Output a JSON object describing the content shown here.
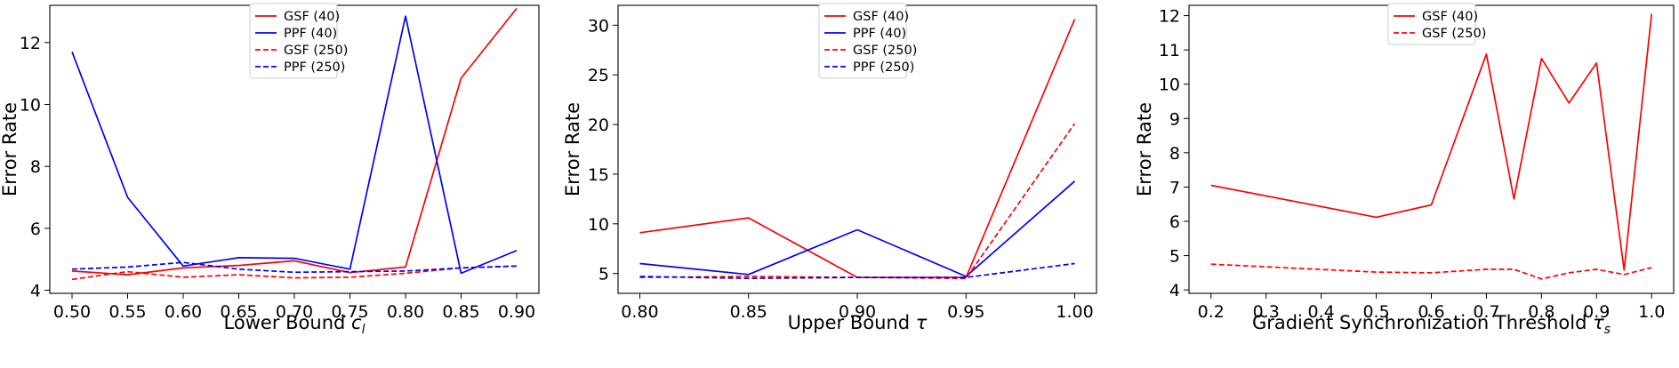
{
  "chart_data": [
    {
      "type": "line",
      "xlabel": "Lower Bound ",
      "xlabel_symbol": "c",
      "xlabel_sub": "l",
      "ylabel": "Error Rate",
      "xlim": [
        0.48,
        0.92
      ],
      "ylim": [
        3.9,
        13.2
      ],
      "x_ticks": [
        0.5,
        0.55,
        0.6,
        0.65,
        0.7,
        0.75,
        0.8,
        0.85,
        0.9
      ],
      "x_tick_labels": [
        "0.50",
        "0.55",
        "0.60",
        "0.65",
        "0.70",
        "0.75",
        "0.80",
        "0.85",
        "0.90"
      ],
      "y_ticks": [
        4,
        6,
        8,
        10,
        12
      ],
      "y_tick_labels": [
        "4",
        "6",
        "8",
        "10",
        "12"
      ],
      "grid": false,
      "legend_position": "top-center",
      "x": [
        0.5,
        0.55,
        0.6,
        0.65,
        0.7,
        0.75,
        0.8,
        0.85,
        0.9
      ],
      "series": [
        {
          "name": "GSF (40)",
          "color": "#ff0000",
          "dash": "solid",
          "values": [
            4.62,
            4.5,
            4.72,
            4.8,
            4.95,
            4.57,
            4.75,
            10.85,
            13.1
          ]
        },
        {
          "name": "PPF (40)",
          "color": "#0000ff",
          "dash": "solid",
          "values": [
            11.7,
            7.0,
            4.78,
            5.05,
            5.03,
            4.68,
            12.85,
            4.55,
            5.28
          ]
        },
        {
          "name": "GSF (250)",
          "color": "#ff0000",
          "dash": "dashed",
          "values": [
            4.35,
            4.6,
            4.42,
            4.5,
            4.4,
            4.42,
            4.55,
            4.72,
            4.78
          ]
        },
        {
          "name": "PPF (250)",
          "color": "#0000ff",
          "dash": "dashed",
          "values": [
            4.68,
            4.75,
            4.9,
            4.68,
            4.58,
            4.6,
            4.62,
            4.72,
            4.78
          ]
        }
      ]
    },
    {
      "type": "line",
      "xlabel": "Upper Bound ",
      "xlabel_symbol": "τ",
      "xlabel_sub": "",
      "ylabel": "Error Rate",
      "xlim": [
        0.79,
        1.01
      ],
      "ylim": [
        3.0,
        32.0
      ],
      "x_ticks": [
        0.8,
        0.85,
        0.9,
        0.95,
        1.0
      ],
      "x_tick_labels": [
        "0.80",
        "0.85",
        "0.90",
        "0.95",
        "1.00"
      ],
      "y_ticks": [
        5,
        10,
        15,
        20,
        25,
        30
      ],
      "y_tick_labels": [
        "5",
        "10",
        "15",
        "20",
        "25",
        "30"
      ],
      "grid": false,
      "legend_position": "top-center",
      "x": [
        0.8,
        0.85,
        0.9,
        0.95,
        1.0
      ],
      "series": [
        {
          "name": "GSF (40)",
          "color": "#ff0000",
          "dash": "solid",
          "values": [
            9.1,
            10.6,
            4.6,
            4.6,
            30.6
          ]
        },
        {
          "name": "PPF (40)",
          "color": "#0000ff",
          "dash": "solid",
          "values": [
            6.0,
            4.9,
            9.4,
            4.7,
            14.3
          ]
        },
        {
          "name": "GSF (250)",
          "color": "#ff0000",
          "dash": "dashed",
          "values": [
            4.6,
            4.7,
            4.6,
            4.5,
            20.1
          ]
        },
        {
          "name": "PPF (250)",
          "color": "#0000ff",
          "dash": "dashed",
          "values": [
            4.7,
            4.5,
            4.6,
            4.6,
            6.0
          ]
        }
      ]
    },
    {
      "type": "line",
      "xlabel": "Gradient Synchronization Threshold ",
      "xlabel_symbol": "τ",
      "xlabel_sub": "s",
      "ylabel": "Error Rate",
      "xlim": [
        0.16,
        1.04
      ],
      "ylim": [
        3.9,
        12.3
      ],
      "x_ticks": [
        0.2,
        0.3,
        0.4,
        0.5,
        0.6,
        0.7,
        0.8,
        0.9,
        1.0
      ],
      "x_tick_labels": [
        "0.2",
        "0.3",
        "0.4",
        "0.5",
        "0.6",
        "0.7",
        "0.8",
        "0.9",
        "1.0"
      ],
      "y_ticks": [
        4,
        5,
        6,
        7,
        8,
        9,
        10,
        11,
        12
      ],
      "y_tick_labels": [
        "4",
        "5",
        "6",
        "7",
        "8",
        "9",
        "10",
        "11",
        "12"
      ],
      "grid": false,
      "legend_position": "top-center",
      "x": [
        0.2,
        0.5,
        0.6,
        0.7,
        0.75,
        0.8,
        0.85,
        0.9,
        0.95,
        1.0
      ],
      "series": [
        {
          "name": "GSF (40)",
          "color": "#ff0000",
          "dash": "solid",
          "values": [
            7.05,
            6.12,
            6.48,
            10.88,
            6.65,
            10.75,
            9.45,
            10.62,
            4.58,
            12.05
          ]
        },
        {
          "name": "GSF (250)",
          "color": "#ff0000",
          "dash": "dashed",
          "values": [
            4.75,
            4.52,
            4.5,
            4.6,
            4.6,
            4.32,
            4.5,
            4.6,
            4.45,
            4.65
          ]
        }
      ]
    }
  ]
}
